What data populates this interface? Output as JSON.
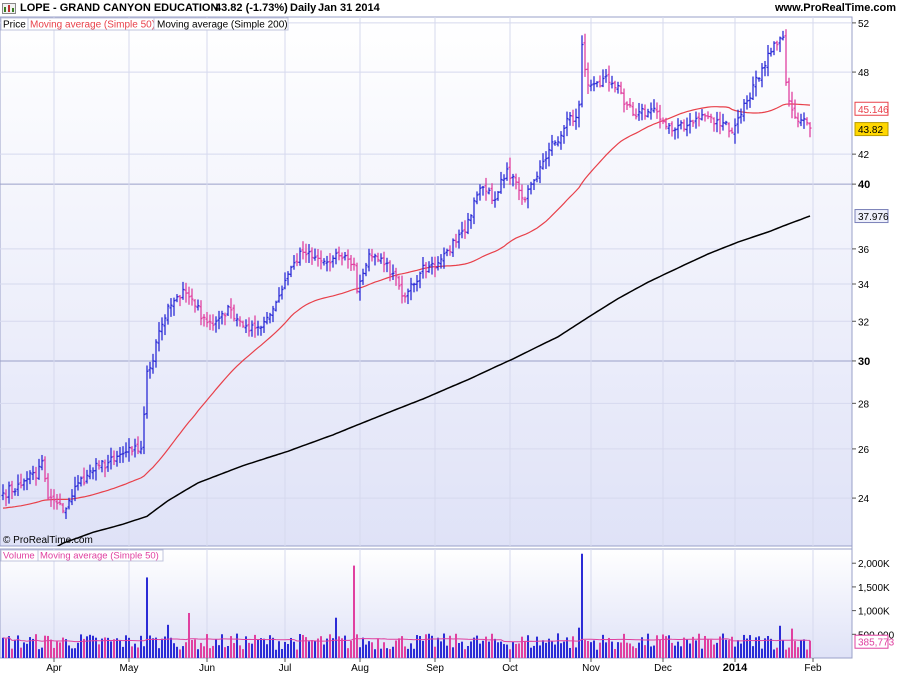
{
  "header": {
    "icon": "grid-icon",
    "title": "LOPE - GRAND CANYON EDUCATION",
    "quote": "43.82 (-1.73%)",
    "period": "Daily",
    "date": "Jan 31 2014",
    "site": "www.ProRealTime.com"
  },
  "legend_price": {
    "price": "Price",
    "ma50": "Moving average (Simple 50)",
    "ma200": "Moving average (Simple 200)"
  },
  "legend_volume": {
    "volume": "Volume",
    "ma": "Moving average (Simple 50)"
  },
  "watermark": "© ProRealTime.com",
  "price_labels": {
    "ma50_value": "45.146",
    "last_price": "43.82",
    "ma200_value": "37.976",
    "volume_ma": "385,773"
  },
  "colors": {
    "up": "#2b2bd6",
    "down": "#e040a0",
    "ma50": "#e8404a",
    "ma200": "#000000",
    "vol_ma": "#e040a0",
    "panel_bg_top": "#ffffff",
    "panel_bg_bottom": "#dde0f6",
    "last_price_bg": "#ffd700"
  },
  "chart_data": [
    {
      "type": "line",
      "title": "LOPE - GRAND CANYON EDUCATION",
      "ylim": [
        22.2,
        52.5
      ],
      "scale": "log",
      "grid": true,
      "y_ticks": [
        {
          "v": 24,
          "label": "24"
        },
        {
          "v": 26,
          "label": "26"
        },
        {
          "v": 28,
          "label": "28"
        },
        {
          "v": 30,
          "label": "30",
          "bold": true
        },
        {
          "v": 32,
          "label": "32"
        },
        {
          "v": 34,
          "label": "34"
        },
        {
          "v": 36,
          "label": "36"
        },
        {
          "v": 40,
          "label": "40",
          "bold": true
        },
        {
          "v": 42,
          "label": "42"
        },
        {
          "v": 48,
          "label": "48"
        },
        {
          "v": 52,
          "label": "52"
        }
      ],
      "x_ticks": [
        {
          "i": 17,
          "label": "Apr"
        },
        {
          "i": 42,
          "label": "May"
        },
        {
          "i": 68,
          "label": "Jun"
        },
        {
          "i": 94,
          "label": "Jul"
        },
        {
          "i": 119,
          "label": "Aug"
        },
        {
          "i": 144,
          "label": "Sep"
        },
        {
          "i": 169,
          "label": "Oct"
        },
        {
          "i": 196,
          "label": "Nov"
        },
        {
          "i": 220,
          "label": "Dec"
        },
        {
          "i": 244,
          "label": "2014",
          "bold": true
        },
        {
          "i": 270,
          "label": "Feb"
        }
      ],
      "close_keypoints": [
        [
          0,
          24.2
        ],
        [
          6,
          24.5
        ],
        [
          9,
          25.0
        ],
        [
          11,
          24.8
        ],
        [
          13,
          25.5
        ],
        [
          15,
          24.0
        ],
        [
          18,
          23.8
        ],
        [
          20,
          23.5
        ],
        [
          22,
          23.9
        ],
        [
          25,
          24.6
        ],
        [
          28,
          24.9
        ],
        [
          32,
          25.3
        ],
        [
          37,
          25.5
        ],
        [
          40,
          25.8
        ],
        [
          43,
          25.9
        ],
        [
          46,
          26.0
        ],
        [
          47,
          27.5
        ],
        [
          48,
          29.5
        ],
        [
          50,
          30.0
        ],
        [
          52,
          31.5
        ],
        [
          55,
          32.8
        ],
        [
          58,
          33.3
        ],
        [
          61,
          33.5
        ],
        [
          64,
          32.8
        ],
        [
          67,
          32.2
        ],
        [
          70,
          31.8
        ],
        [
          73,
          32.4
        ],
        [
          76,
          32.6
        ],
        [
          79,
          32.0
        ],
        [
          82,
          31.5
        ],
        [
          85,
          31.7
        ],
        [
          88,
          32.2
        ],
        [
          91,
          33.0
        ],
        [
          94,
          34.2
        ],
        [
          97,
          35.2
        ],
        [
          100,
          35.8
        ],
        [
          103,
          35.5
        ],
        [
          106,
          35.3
        ],
        [
          109,
          35.2
        ],
        [
          112,
          35.6
        ],
        [
          115,
          35.4
        ],
        [
          117,
          35.1
        ],
        [
          118,
          33.6
        ],
        [
          120,
          34.6
        ],
        [
          122,
          35.7
        ],
        [
          124,
          35.6
        ],
        [
          127,
          35.1
        ],
        [
          130,
          34.6
        ],
        [
          132,
          33.9
        ],
        [
          134,
          33.3
        ],
        [
          136,
          34.0
        ],
        [
          139,
          34.6
        ],
        [
          142,
          35.0
        ],
        [
          145,
          35.2
        ],
        [
          148,
          35.9
        ],
        [
          151,
          36.4
        ],
        [
          154,
          37.0
        ],
        [
          156,
          38.0
        ],
        [
          158,
          39.3
        ],
        [
          160,
          39.8
        ],
        [
          162,
          39.6
        ],
        [
          164,
          39.0
        ],
        [
          166,
          40.3
        ],
        [
          168,
          41.0
        ],
        [
          170,
          40.5
        ],
        [
          172,
          39.6
        ],
        [
          174,
          39.0
        ],
        [
          176,
          40.0
        ],
        [
          178,
          40.5
        ],
        [
          180,
          41.5
        ],
        [
          182,
          42.3
        ],
        [
          184,
          42.8
        ],
        [
          186,
          43.3
        ],
        [
          188,
          44.5
        ],
        [
          190,
          44.3
        ],
        [
          192,
          45.5
        ],
        [
          193,
          50.2
        ],
        [
          194,
          48.2
        ],
        [
          195,
          47.0
        ],
        [
          196,
          47.0
        ],
        [
          198,
          47.2
        ],
        [
          200,
          47.5
        ],
        [
          202,
          47.2
        ],
        [
          204,
          46.8
        ],
        [
          206,
          46.4
        ],
        [
          208,
          45.5
        ],
        [
          210,
          44.8
        ],
        [
          212,
          45.0
        ],
        [
          214,
          44.7
        ],
        [
          216,
          45.2
        ],
        [
          218,
          45.0
        ],
        [
          220,
          44.3
        ],
        [
          222,
          44.0
        ],
        [
          224,
          43.7
        ],
        [
          226,
          44.2
        ],
        [
          228,
          44.0
        ],
        [
          230,
          44.2
        ],
        [
          232,
          44.5
        ],
        [
          234,
          44.7
        ],
        [
          236,
          44.6
        ],
        [
          238,
          44.4
        ],
        [
          240,
          44.2
        ],
        [
          242,
          43.6
        ],
        [
          244,
          44.0
        ],
        [
          246,
          44.8
        ],
        [
          248,
          45.8
        ],
        [
          250,
          47.0
        ],
        [
          252,
          47.5
        ],
        [
          254,
          48.5
        ],
        [
          256,
          49.6
        ],
        [
          258,
          50.2
        ],
        [
          260,
          50.8
        ],
        [
          261,
          47.2
        ],
        [
          262,
          45.8
        ],
        [
          264,
          44.6
        ],
        [
          266,
          44.4
        ],
        [
          268,
          44.2
        ],
        [
          269,
          43.82
        ]
      ],
      "series": [
        {
          "name": "Price",
          "kind": "ohlc"
        },
        {
          "name": "Moving average (Simple 50)",
          "kind": "sma",
          "period": 50,
          "last": 45.146
        },
        {
          "name": "Moving average (Simple 200)",
          "kind": "sma200",
          "last": 37.976
        }
      ]
    },
    {
      "type": "bar",
      "title": "Volume",
      "ylim": [
        0,
        2300000
      ],
      "y_ticks": [
        {
          "v": 500000,
          "label": "500,000"
        },
        {
          "v": 1000000,
          "label": "1,000K"
        },
        {
          "v": 1500000,
          "label": "1,500K"
        },
        {
          "v": 2000000,
          "label": "2,000K"
        }
      ],
      "typical": 385000,
      "spikes": [
        {
          "i": 48,
          "v": 1700000
        },
        {
          "i": 117,
          "v": 1950000
        },
        {
          "i": 193,
          "v": 2200000
        },
        {
          "i": 62,
          "v": 950000
        },
        {
          "i": 111,
          "v": 850000
        },
        {
          "i": 55,
          "v": 700000
        },
        {
          "i": 259,
          "v": 680000
        },
        {
          "i": 263,
          "v": 620000
        },
        {
          "i": 185,
          "v": 520000
        },
        {
          "i": 192,
          "v": 640000
        }
      ],
      "series": [
        {
          "name": "Volume",
          "kind": "bars"
        },
        {
          "name": "Moving average (Simple 50)",
          "kind": "sma",
          "last": 385773
        }
      ]
    }
  ]
}
